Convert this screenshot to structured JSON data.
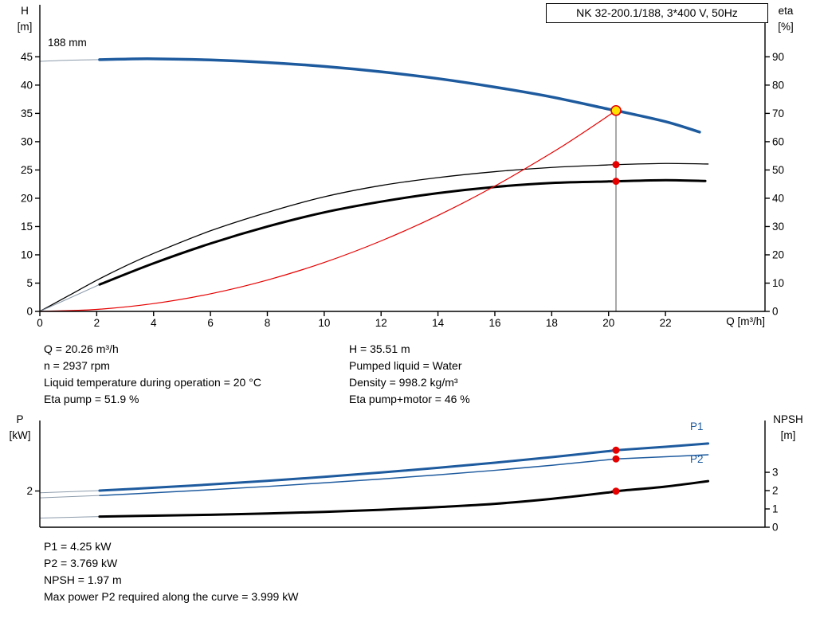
{
  "title_box": {
    "text": "NK 32-200.1/188, 3*400 V, 50Hz"
  },
  "colors": {
    "curve_blue": "#1d5a9e",
    "curve_black": "#000000",
    "curve_red": "#e60000",
    "dot_red": "#e60000",
    "duty_yellow": "#ffe200",
    "lead_gray": "#8c9bab",
    "duty_line": "#707070",
    "axis": "#000000"
  },
  "axis_labels": {
    "top_left_1": "H",
    "top_left_2": "[m]",
    "top_right_1": "eta",
    "top_right_2": "[%]",
    "x_label": "Q [m³/h]",
    "bottom_left_1": "P",
    "bottom_left_2": "[kW]",
    "bottom_right_1": "NPSH",
    "bottom_right_2": "[m]",
    "impeller": "188 mm",
    "p1": "P1",
    "p2": "P2"
  },
  "info_top": {
    "left": [
      "Q = 20.26 m³/h",
      "n = 2937 rpm",
      "Liquid temperature during operation = 20 °C",
      "Eta pump = 51.9 %"
    ],
    "right": [
      "H = 35.51 m",
      "Pumped liquid = Water",
      "Density = 998.2 kg/m³",
      "Eta pump+motor = 46 %"
    ]
  },
  "info_bottom": [
    "P1 = 4.25 kW",
    "P2 = 3.769 kW",
    "NPSH = 1.97 m",
    "Max power P2 required along the curve = 3.999 kW"
  ],
  "chart_data": [
    {
      "type": "line",
      "name": "qh-eta-chart",
      "title": "NK 32-200.1/188, 3*400 V, 50Hz",
      "xlabel": "Q [m³/h]",
      "xlim": [
        0,
        25.5
      ],
      "x_ticks": [
        0,
        2,
        4,
        6,
        8,
        10,
        12,
        14,
        16,
        18,
        20,
        22
      ],
      "left_axis": {
        "label": "H [m]",
        "lim": [
          0,
          54.2
        ],
        "ticks": [
          0,
          5,
          10,
          15,
          20,
          25,
          30,
          35,
          40,
          45
        ]
      },
      "right_axis": {
        "label": "eta [%]",
        "lim": [
          0,
          108.4
        ],
        "ticks": [
          0,
          10,
          20,
          30,
          40,
          50,
          60,
          70,
          80,
          90
        ]
      },
      "duty_point": {
        "q": 20.26,
        "h": 35.51,
        "eta_pump": 51.9,
        "eta_pump_motor": 46
      },
      "duty_line": {
        "q": 20.26,
        "to": 35.51
      },
      "series": [
        {
          "name": "head-curve-lead",
          "axis": "left",
          "color": "lead_gray",
          "width": 1,
          "points": [
            [
              0,
              44.2
            ],
            [
              1,
              44.4
            ],
            [
              2.1,
              44.5
            ]
          ]
        },
        {
          "name": "head-curve",
          "axis": "left",
          "color": "curve_blue",
          "width": 3.5,
          "points": [
            [
              2.1,
              44.5
            ],
            [
              3,
              44.6
            ],
            [
              4,
              44.65
            ],
            [
              6,
              44.45
            ],
            [
              8,
              44.0
            ],
            [
              10,
              43.3
            ],
            [
              12,
              42.35
            ],
            [
              14,
              41.15
            ],
            [
              16,
              39.65
            ],
            [
              18,
              37.9
            ],
            [
              20,
              35.75
            ],
            [
              20.26,
              35.51
            ],
            [
              22,
              33.55
            ],
            [
              23.2,
              31.7
            ]
          ]
        },
        {
          "name": "eta-pump-curve",
          "axis": "right",
          "color": "curve_black",
          "width": 1.3,
          "points": [
            [
              0,
              0
            ],
            [
              1,
              5.5
            ],
            [
              2,
              11
            ],
            [
              3,
              16
            ],
            [
              4,
              20.5
            ],
            [
              6,
              28.5
            ],
            [
              8,
              35
            ],
            [
              10,
              40.5
            ],
            [
              12,
              44.5
            ],
            [
              14,
              47.3
            ],
            [
              16,
              49.4
            ],
            [
              18,
              50.9
            ],
            [
              20,
              51.8
            ],
            [
              20.26,
              51.9
            ],
            [
              22,
              52.3
            ],
            [
              23.5,
              52.1
            ]
          ]
        },
        {
          "name": "eta-pump-motor-lead",
          "axis": "right",
          "color": "lead_gray",
          "width": 1,
          "points": [
            [
              0,
              0
            ],
            [
              1,
              4.5
            ],
            [
              2.1,
              9.5
            ]
          ]
        },
        {
          "name": "eta-pump-motor-curve",
          "axis": "right",
          "color": "curve_black",
          "width": 3,
          "points": [
            [
              2.1,
              9.5
            ],
            [
              4,
              17
            ],
            [
              6,
              24
            ],
            [
              8,
              30
            ],
            [
              10,
              35
            ],
            [
              12,
              38.8
            ],
            [
              14,
              41.8
            ],
            [
              16,
              44
            ],
            [
              18,
              45.4
            ],
            [
              20,
              45.95
            ],
            [
              20.26,
              46
            ],
            [
              22,
              46.4
            ],
            [
              23.4,
              46.1
            ]
          ]
        },
        {
          "name": "system-curve",
          "axis": "left",
          "color": "curve_red",
          "width": 1.2,
          "points": [
            [
              0,
              0
            ],
            [
              2,
              0.35
            ],
            [
              4,
              1.38
            ],
            [
              6,
              3.11
            ],
            [
              8,
              5.54
            ],
            [
              10,
              8.65
            ],
            [
              12,
              12.46
            ],
            [
              14,
              16.96
            ],
            [
              16,
              22.15
            ],
            [
              18,
              28.03
            ],
            [
              19,
              31.24
            ],
            [
              20,
              34.61
            ],
            [
              20.26,
              35.51
            ]
          ]
        }
      ],
      "markers": [
        {
          "name": "duty-point",
          "axis": "left",
          "q": 20.26,
          "v": 35.51,
          "r": 6,
          "fill": "duty_yellow",
          "stroke": "curve_red",
          "sw": 1.6
        },
        {
          "name": "eta-pump-dot",
          "axis": "right",
          "q": 20.26,
          "v": 51.9,
          "r": 4.5,
          "fill": "dot_red"
        },
        {
          "name": "eta-pump-motor-dot",
          "axis": "right",
          "q": 20.26,
          "v": 46,
          "r": 4.5,
          "fill": "dot_red"
        }
      ]
    },
    {
      "type": "line",
      "name": "power-npsh-chart",
      "xlim": [
        0,
        25.5
      ],
      "x_ticks": [],
      "left_axis": {
        "label": "P [kW]",
        "lim": [
          0,
          5.89
        ],
        "ticks": [
          2
        ]
      },
      "right_axis": {
        "label": "NPSH [m]",
        "lim": [
          0,
          5.83
        ],
        "ticks": [
          0,
          1,
          2,
          3
        ]
      },
      "series": [
        {
          "name": "p1-curve-lead",
          "axis": "left",
          "color": "lead_gray",
          "width": 1,
          "points": [
            [
              0,
              1.9
            ],
            [
              2.1,
              2.02
            ]
          ]
        },
        {
          "name": "p1-curve",
          "axis": "left",
          "color": "curve_blue",
          "width": 3,
          "points": [
            [
              2.1,
              2.02
            ],
            [
              4,
              2.18
            ],
            [
              6,
              2.36
            ],
            [
              8,
              2.56
            ],
            [
              10,
              2.78
            ],
            [
              12,
              3.02
            ],
            [
              14,
              3.28
            ],
            [
              16,
              3.56
            ],
            [
              18,
              3.87
            ],
            [
              20,
              4.2
            ],
            [
              20.26,
              4.25
            ],
            [
              22,
              4.44
            ],
            [
              23.5,
              4.62
            ]
          ]
        },
        {
          "name": "p2-curve-lead",
          "axis": "left",
          "color": "lead_gray",
          "width": 1,
          "points": [
            [
              0,
              1.62
            ],
            [
              2.1,
              1.75
            ]
          ]
        },
        {
          "name": "p2-curve",
          "axis": "left",
          "color": "curve_blue",
          "width": 1.5,
          "points": [
            [
              2.1,
              1.75
            ],
            [
              4,
              1.9
            ],
            [
              6,
              2.07
            ],
            [
              8,
              2.25
            ],
            [
              10,
              2.45
            ],
            [
              12,
              2.66
            ],
            [
              14,
              2.89
            ],
            [
              16,
              3.14
            ],
            [
              18,
              3.42
            ],
            [
              20,
              3.73
            ],
            [
              20.26,
              3.769
            ],
            [
              22,
              3.89
            ],
            [
              23.5,
              4.0
            ]
          ]
        },
        {
          "name": "npsh-curve-lead",
          "axis": "right",
          "color": "lead_gray",
          "width": 1,
          "points": [
            [
              0,
              0.5
            ],
            [
              2.1,
              0.58
            ]
          ]
        },
        {
          "name": "npsh-curve",
          "axis": "right",
          "color": "curve_black",
          "width": 3,
          "points": [
            [
              2.1,
              0.58
            ],
            [
              4,
              0.63
            ],
            [
              6,
              0.68
            ],
            [
              8,
              0.75
            ],
            [
              10,
              0.84
            ],
            [
              12,
              0.95
            ],
            [
              14,
              1.1
            ],
            [
              16,
              1.28
            ],
            [
              18,
              1.55
            ],
            [
              20,
              1.9
            ],
            [
              20.26,
              1.97
            ],
            [
              22,
              2.22
            ],
            [
              23.5,
              2.52
            ]
          ]
        }
      ],
      "markers": [
        {
          "name": "p1-dot",
          "axis": "left",
          "q": 20.26,
          "v": 4.25,
          "r": 4.5,
          "fill": "dot_red"
        },
        {
          "name": "p2-dot",
          "axis": "left",
          "q": 20.26,
          "v": 3.769,
          "r": 4.5,
          "fill": "dot_red"
        },
        {
          "name": "npsh-dot",
          "axis": "right",
          "q": 20.26,
          "v": 1.97,
          "r": 4.5,
          "fill": "dot_red"
        }
      ]
    }
  ]
}
